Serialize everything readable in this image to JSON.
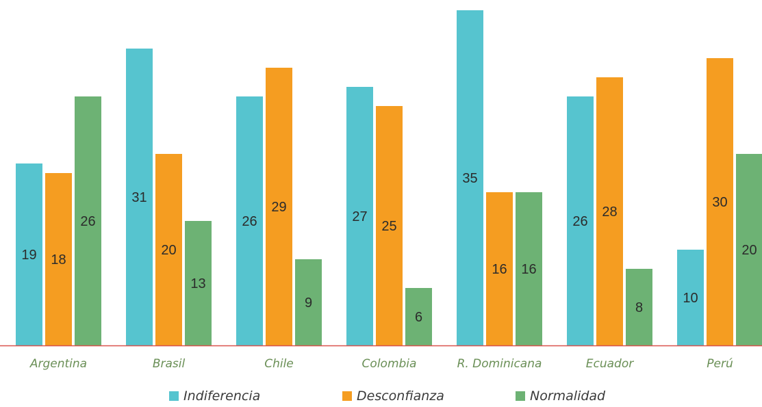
{
  "chart_data": {
    "type": "bar",
    "categories": [
      "Argentina",
      "Brasil",
      "Chile",
      "Colombia",
      "R. Dominicana",
      "Ecuador",
      "Perú"
    ],
    "series": [
      {
        "name": "Indiferencia",
        "color": "#56c4cf",
        "values": [
          19,
          31,
          26,
          27,
          35,
          26,
          10
        ]
      },
      {
        "name": "Desconfianza",
        "color": "#f59d21",
        "values": [
          18,
          20,
          29,
          25,
          16,
          28,
          30
        ]
      },
      {
        "name": "Normalidad",
        "color": "#6db274",
        "values": [
          26,
          13,
          9,
          6,
          16,
          8,
          20
        ]
      }
    ],
    "ylim": [
      0,
      35
    ],
    "axis_color": "#d9534f",
    "grid": false,
    "legend_position": "bottom-center"
  }
}
